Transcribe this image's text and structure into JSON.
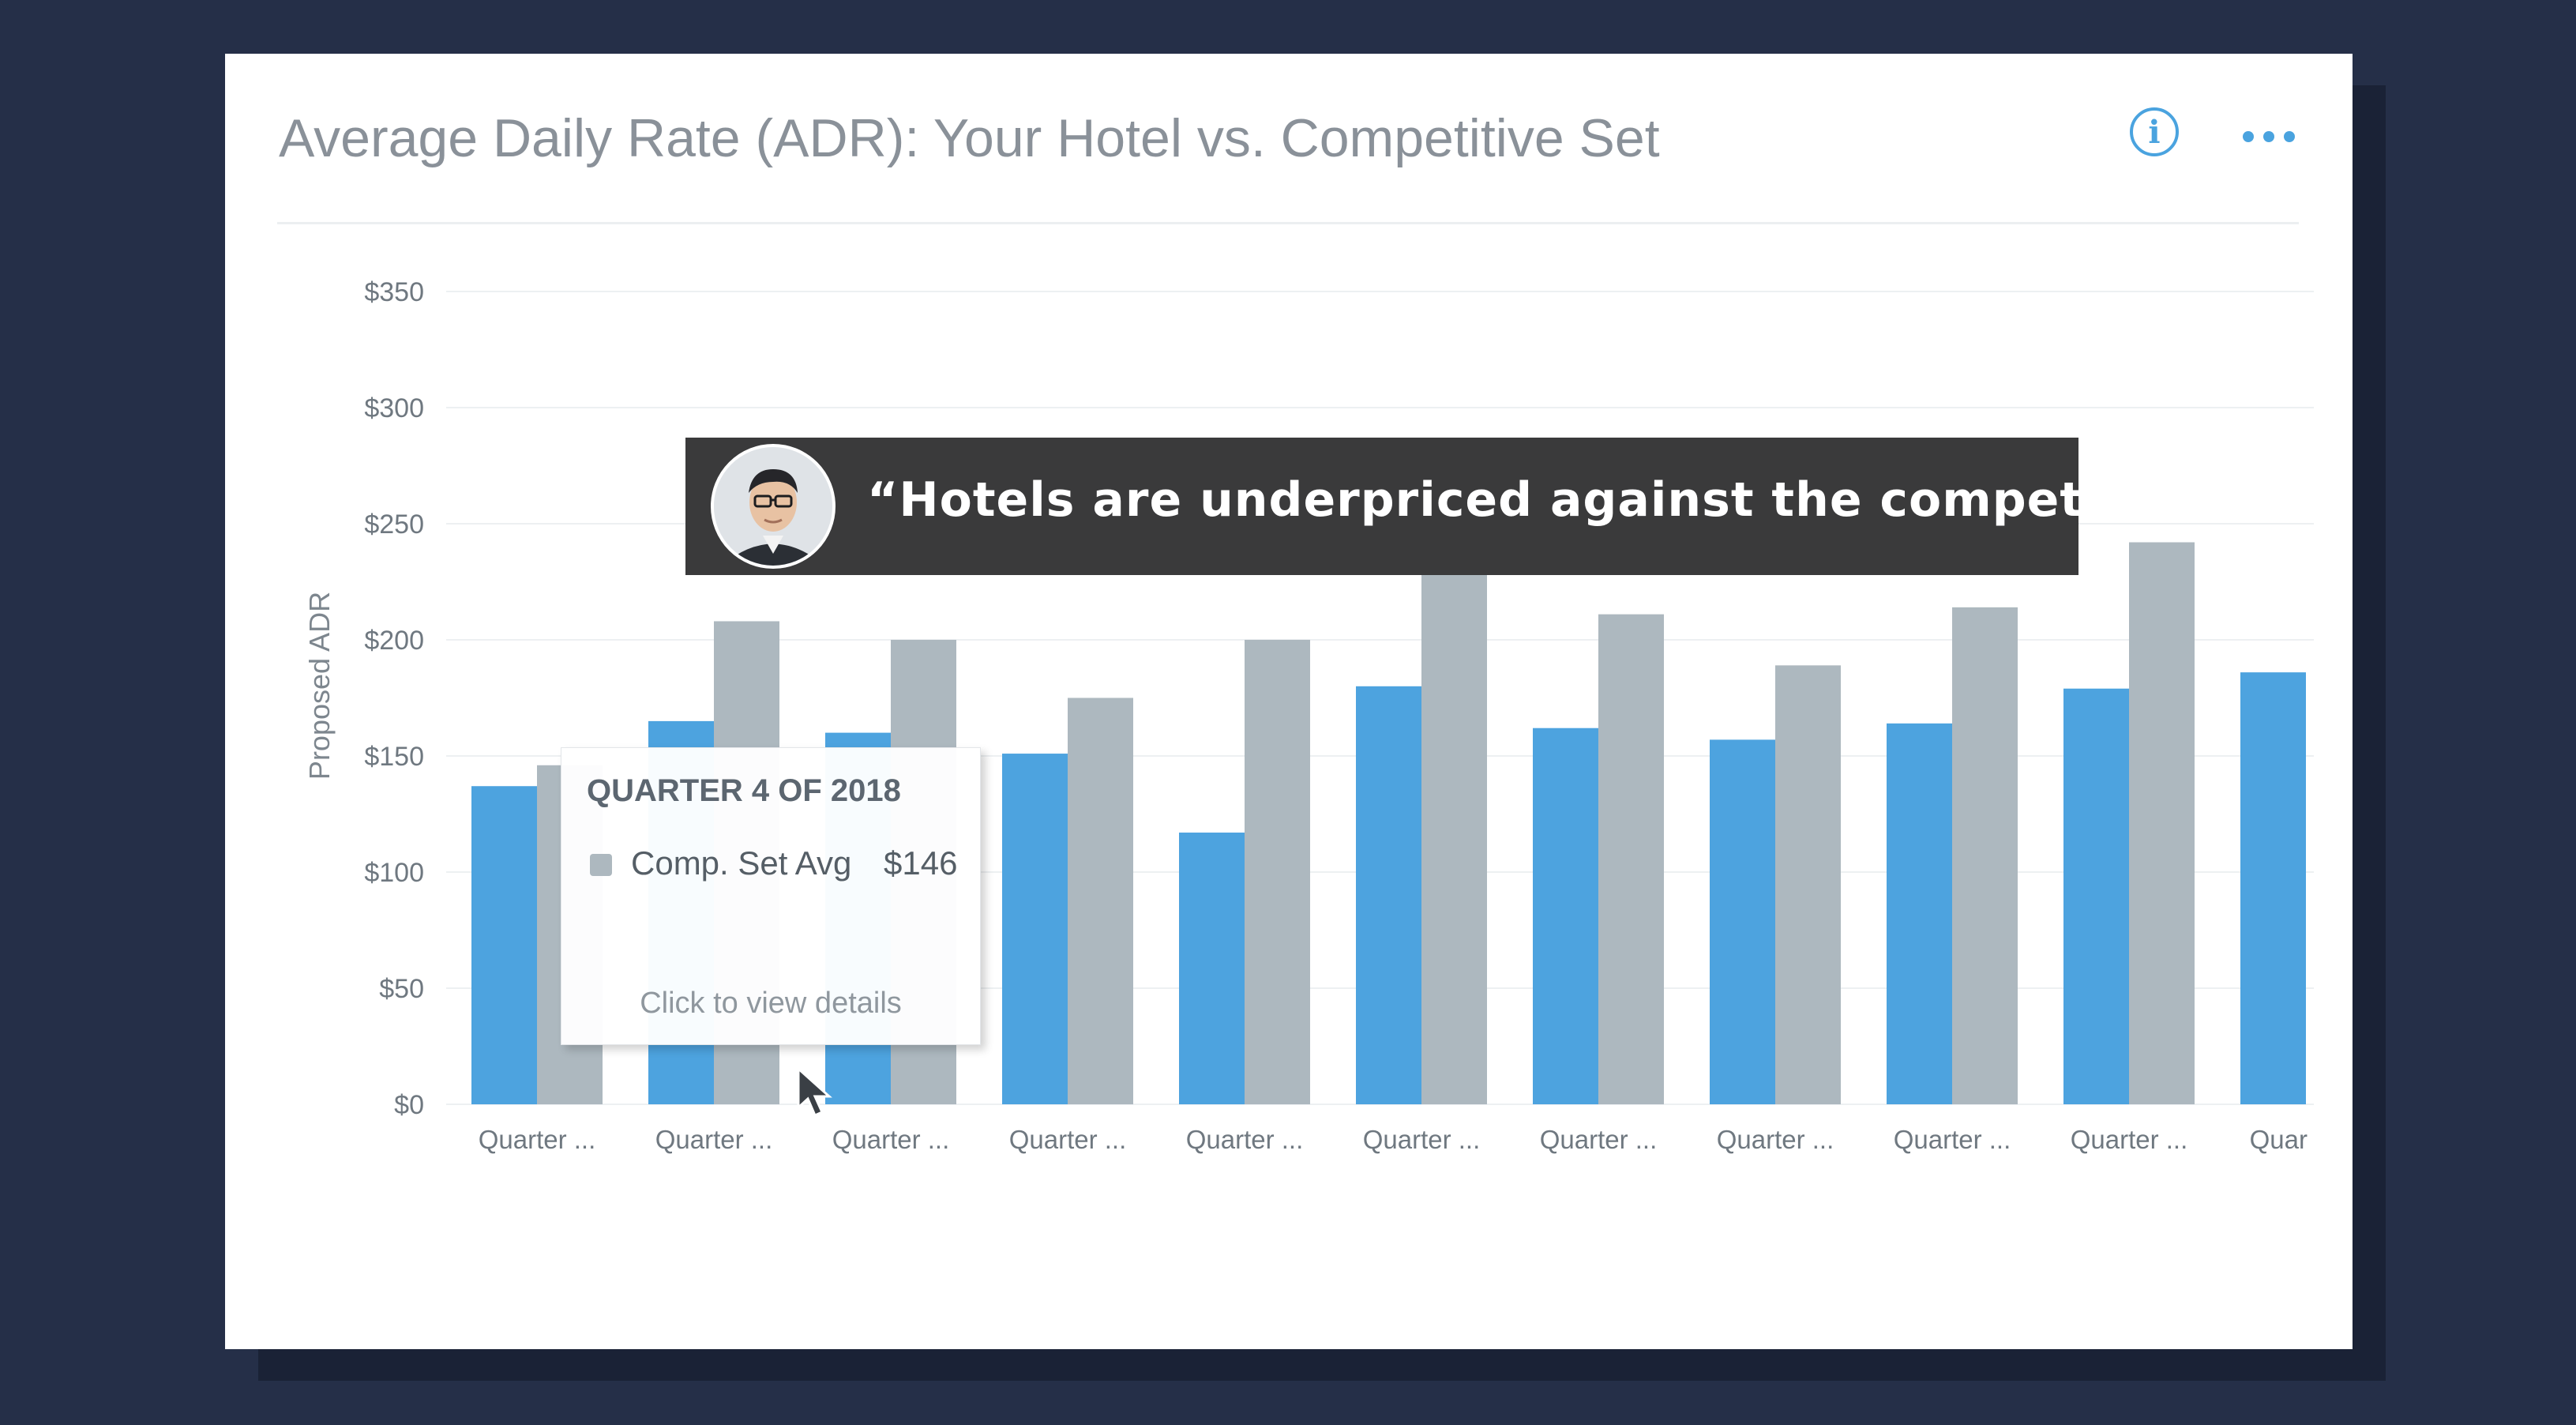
{
  "card": {
    "title": "Average Daily Rate (ADR): Your Hotel vs. Competitive Set",
    "info_icon": "info-icon",
    "more_icon": "more-horizontal-icon",
    "accent_color": "#4aa3df"
  },
  "chart_data": {
    "type": "bar",
    "title": "Average Daily Rate (ADR): Your Hotel vs. Competitive Set",
    "ylabel": "Proposed ADR",
    "xlabel": "",
    "ylim": [
      0,
      350
    ],
    "y_ticks": [
      0,
      50,
      100,
      150,
      200,
      250,
      300,
      350
    ],
    "y_tick_labels": [
      "$0",
      "$50",
      "$100",
      "$150",
      "$200",
      "$250",
      "$300",
      "$350"
    ],
    "grid": true,
    "legend": "none",
    "categories": [
      "Quarter ...",
      "Quarter ...",
      "Quarter ...",
      "Quarter ...",
      "Quarter ...",
      "Quarter ...",
      "Quarter ...",
      "Quarter ...",
      "Quarter ...",
      "Quarter ...",
      "Quar"
    ],
    "series": [
      {
        "color": "#4da3df",
        "values": [
          137,
          165,
          160,
          151,
          117,
          180,
          162,
          157,
          164,
          179,
          186
        ]
      },
      {
        "color": "#adb8bf",
        "values": [
          146,
          208,
          200,
          175,
          200,
          228,
          211,
          189,
          214,
          242,
          null
        ]
      }
    ]
  },
  "tooltip": {
    "title": "QUARTER 4 OF 2018",
    "series_label": "Comp. Set Avg",
    "value": "$146",
    "link": "Click to view details",
    "swatch_color": "#adb8bf"
  },
  "caption": {
    "quote": "“Hotels are underpriced against the competition”",
    "avatar_icon": "person-avatar"
  }
}
